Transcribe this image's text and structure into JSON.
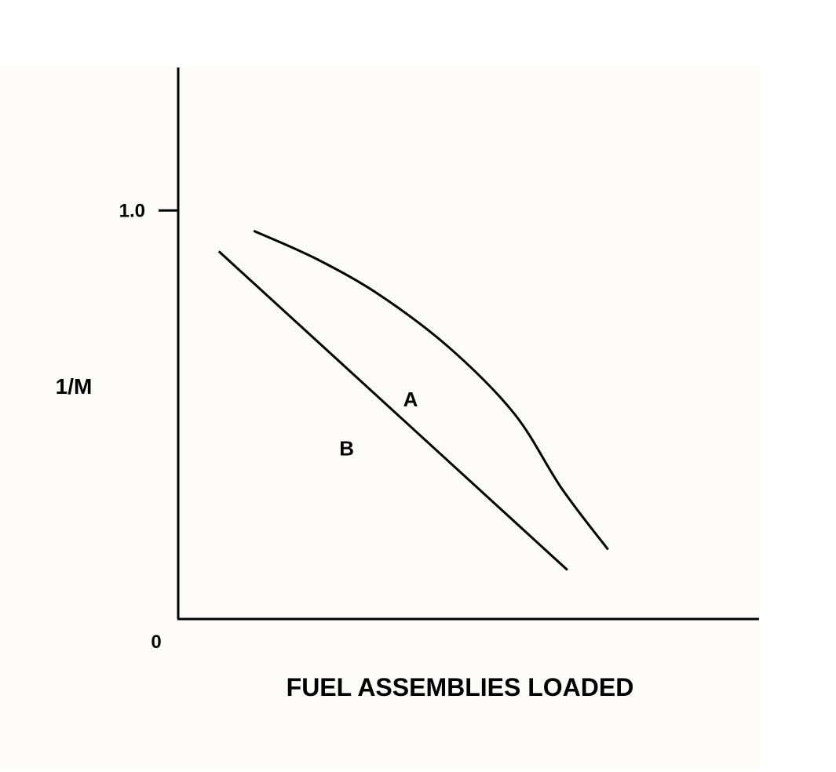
{
  "chart_data": {
    "type": "line",
    "title": "",
    "xlabel": "FUEL ASSEMBLIES LOADED",
    "ylabel": "1/M",
    "origin_label": "0",
    "yticks": [
      {
        "value": 1.0,
        "label": "1.0"
      }
    ],
    "xlim": [
      0,
      1.0
    ],
    "ylim": [
      0,
      1.35
    ],
    "grid": false,
    "legend": "none",
    "colors": {
      "background": "#fdfbf8",
      "page": "#ffffff",
      "ink": "#000000"
    },
    "series": [
      {
        "name": "A",
        "x": [
          0.13,
          0.24,
          0.35,
          0.47,
          0.58,
          0.66,
          0.74
        ],
        "y": [
          0.95,
          0.88,
          0.79,
          0.66,
          0.5,
          0.32,
          0.17
        ]
      },
      {
        "name": "B",
        "x": [
          0.07,
          0.67
        ],
        "y": [
          0.9,
          0.12
        ]
      }
    ]
  }
}
